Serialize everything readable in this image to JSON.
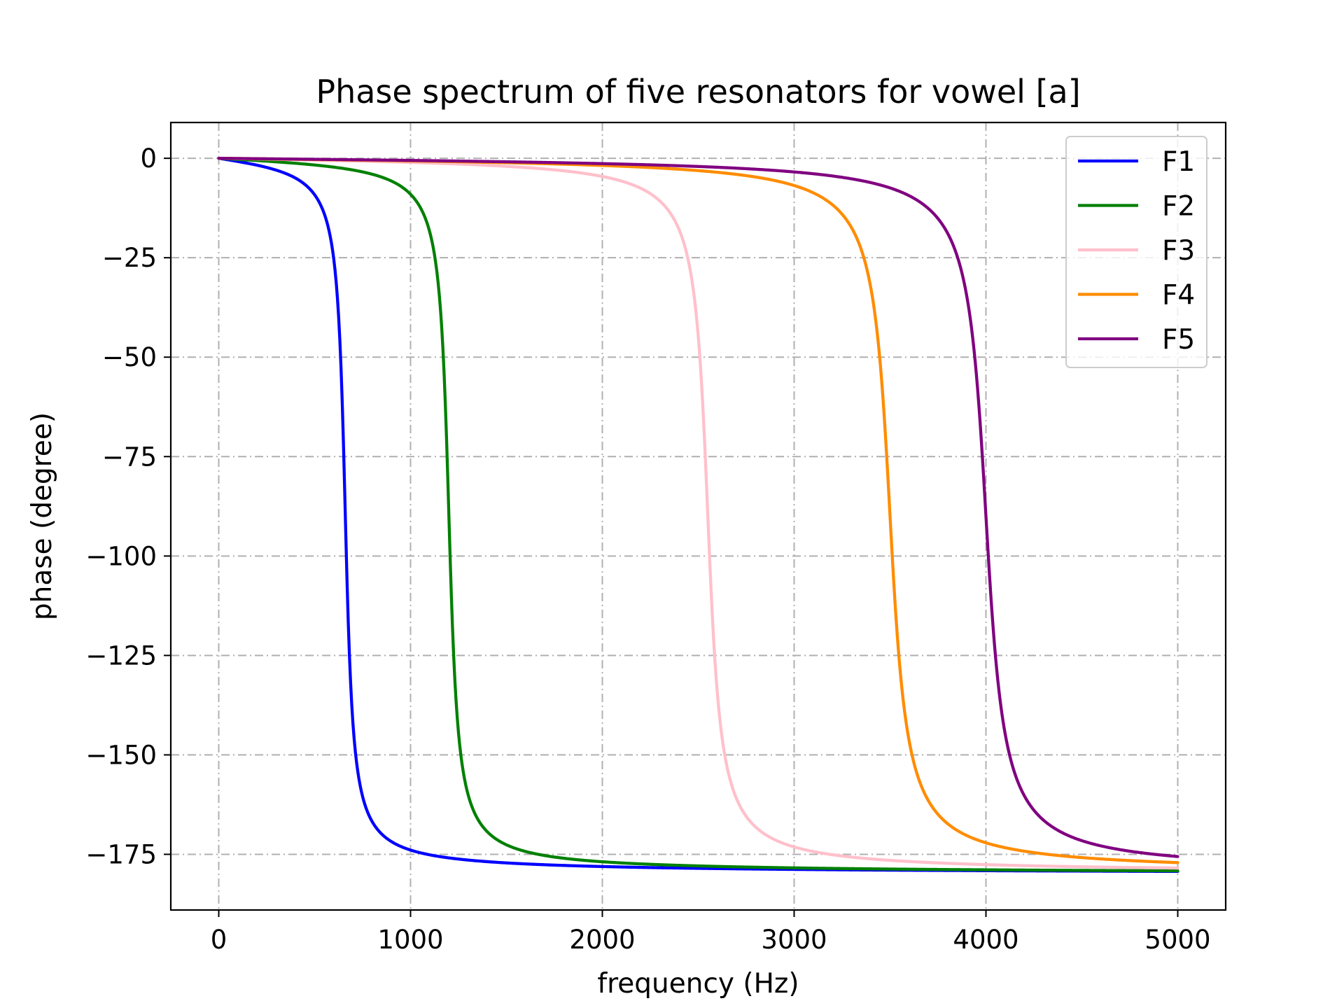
{
  "chart_data": {
    "type": "line",
    "title": "Phase spectrum of five resonators for vowel [a]",
    "xlabel": "frequency (Hz)",
    "ylabel": "phase (degree)",
    "xlim": [
      -250,
      5250
    ],
    "ylim": [
      -189,
      9
    ],
    "xticks": [
      0,
      1000,
      2000,
      3000,
      4000,
      5000
    ],
    "xtick_labels": [
      "0",
      "1000",
      "2000",
      "3000",
      "4000",
      "5000"
    ],
    "yticks": [
      0,
      -25,
      -50,
      -75,
      -100,
      -125,
      -150,
      -175
    ],
    "ytick_labels": [
      "0",
      "−25",
      "−50",
      "−75",
      "−100",
      "−125",
      "−150",
      "−175"
    ],
    "grid": true,
    "legend_position": "top-right",
    "x_range": [
      0,
      5000
    ],
    "series": [
      {
        "name": "F1",
        "color": "#0000ff",
        "resonance_hz": 660,
        "bandwidth_hz": 60
      },
      {
        "name": "F2",
        "color": "#008000",
        "resonance_hz": 1200,
        "bandwidth_hz": 70
      },
      {
        "name": "F3",
        "color": "#ffc0cb",
        "resonance_hz": 2550,
        "bandwidth_hz": 100
      },
      {
        "name": "F4",
        "color": "#ff8c00",
        "resonance_hz": 3500,
        "bandwidth_hz": 130
      },
      {
        "name": "F5",
        "color": "#800080",
        "resonance_hz": 4000,
        "bandwidth_hz": 140
      }
    ]
  }
}
